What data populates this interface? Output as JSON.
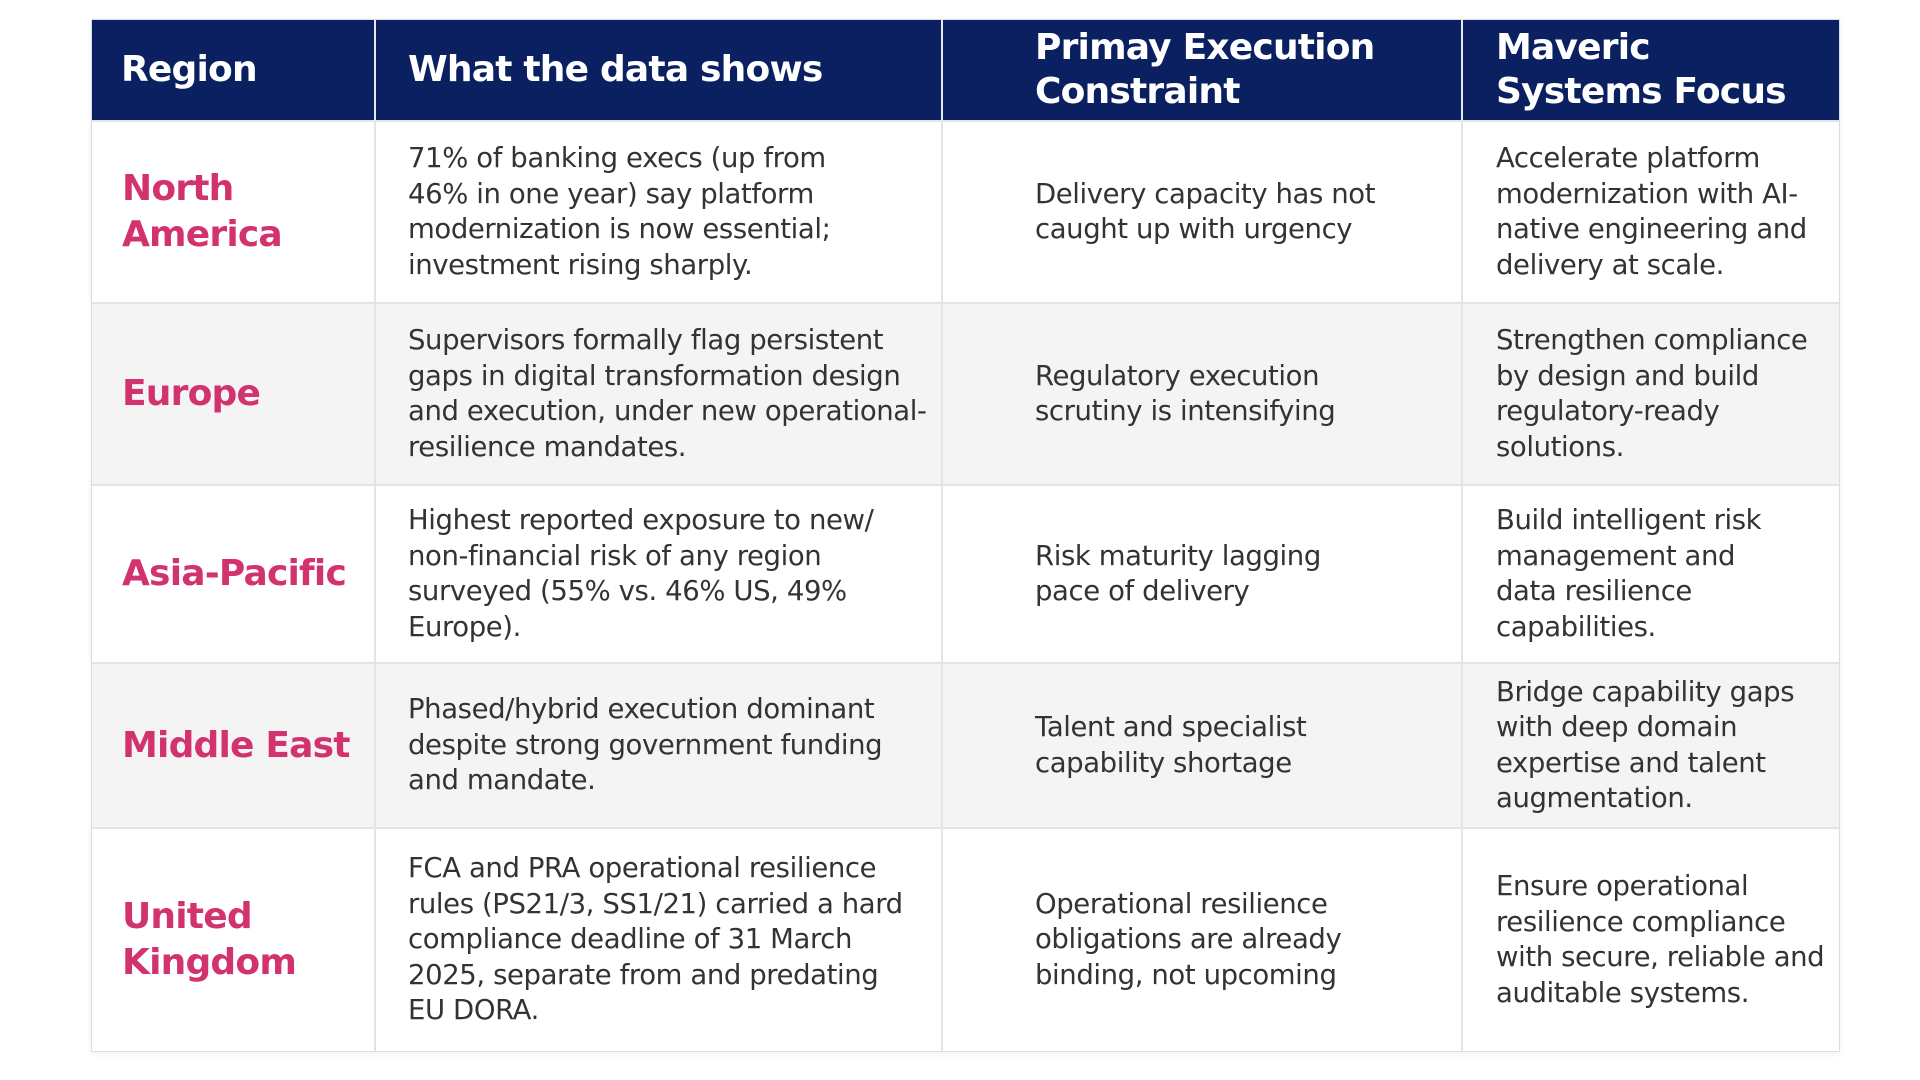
{
  "table": {
    "headers": {
      "region": "Region",
      "data": "What the data shows",
      "constraint": "Primay Execution Constraint",
      "focus": "Maveric Systems Focus"
    },
    "rows": [
      {
        "region": "North America",
        "data": "71% of banking execs (up from 46% in one year) say platform modernization is now essential; investment rising sharply.",
        "constraint": "Delivery capacity has not caught up with urgency",
        "focus": "Accelerate platform modernization with AI-native engineering and delivery at scale."
      },
      {
        "region": "Europe",
        "data": "Supervisors formally flag persistent gaps in digital transformation design and execution, under new operational-resilience mandates.",
        "constraint": "Regulatory execution scrutiny is intensifying",
        "focus": "Strengthen compliance by design and build regulatory-ready solutions."
      },
      {
        "region": "Asia-Pacific",
        "data": "Highest reported exposure to new/ non-financial risk of any region surveyed (55% vs. 46% US, 49% Europe).",
        "constraint": "Risk maturity lagging pace of delivery",
        "focus": "Build intelligent risk management and data resilience capabilities."
      },
      {
        "region": "Middle East",
        "data": "Phased/hybrid execution dominant despite strong government funding and mandate.",
        "constraint": "Talent and specialist capability shortage",
        "focus": "Bridge capability gaps with deep domain expertise and talent augmentation."
      },
      {
        "region": "United Kingdom",
        "data": "FCA and PRA operational resilience rules (PS21/3, SS1/21) carried a hard compliance deadline of 31 March 2025, separate from and predating EU DORA.",
        "constraint": "Operational resilience obligations are already binding, not upcoming",
        "focus": "Ensure operational resilience compliance with secure, reliable and auditable systems."
      }
    ]
  },
  "colors": {
    "header_bg": "#0b2060",
    "header_text": "#ffffff",
    "region_text": "#d2336f",
    "body_text": "#333333",
    "alt_row_bg": "#f4f4f5"
  }
}
